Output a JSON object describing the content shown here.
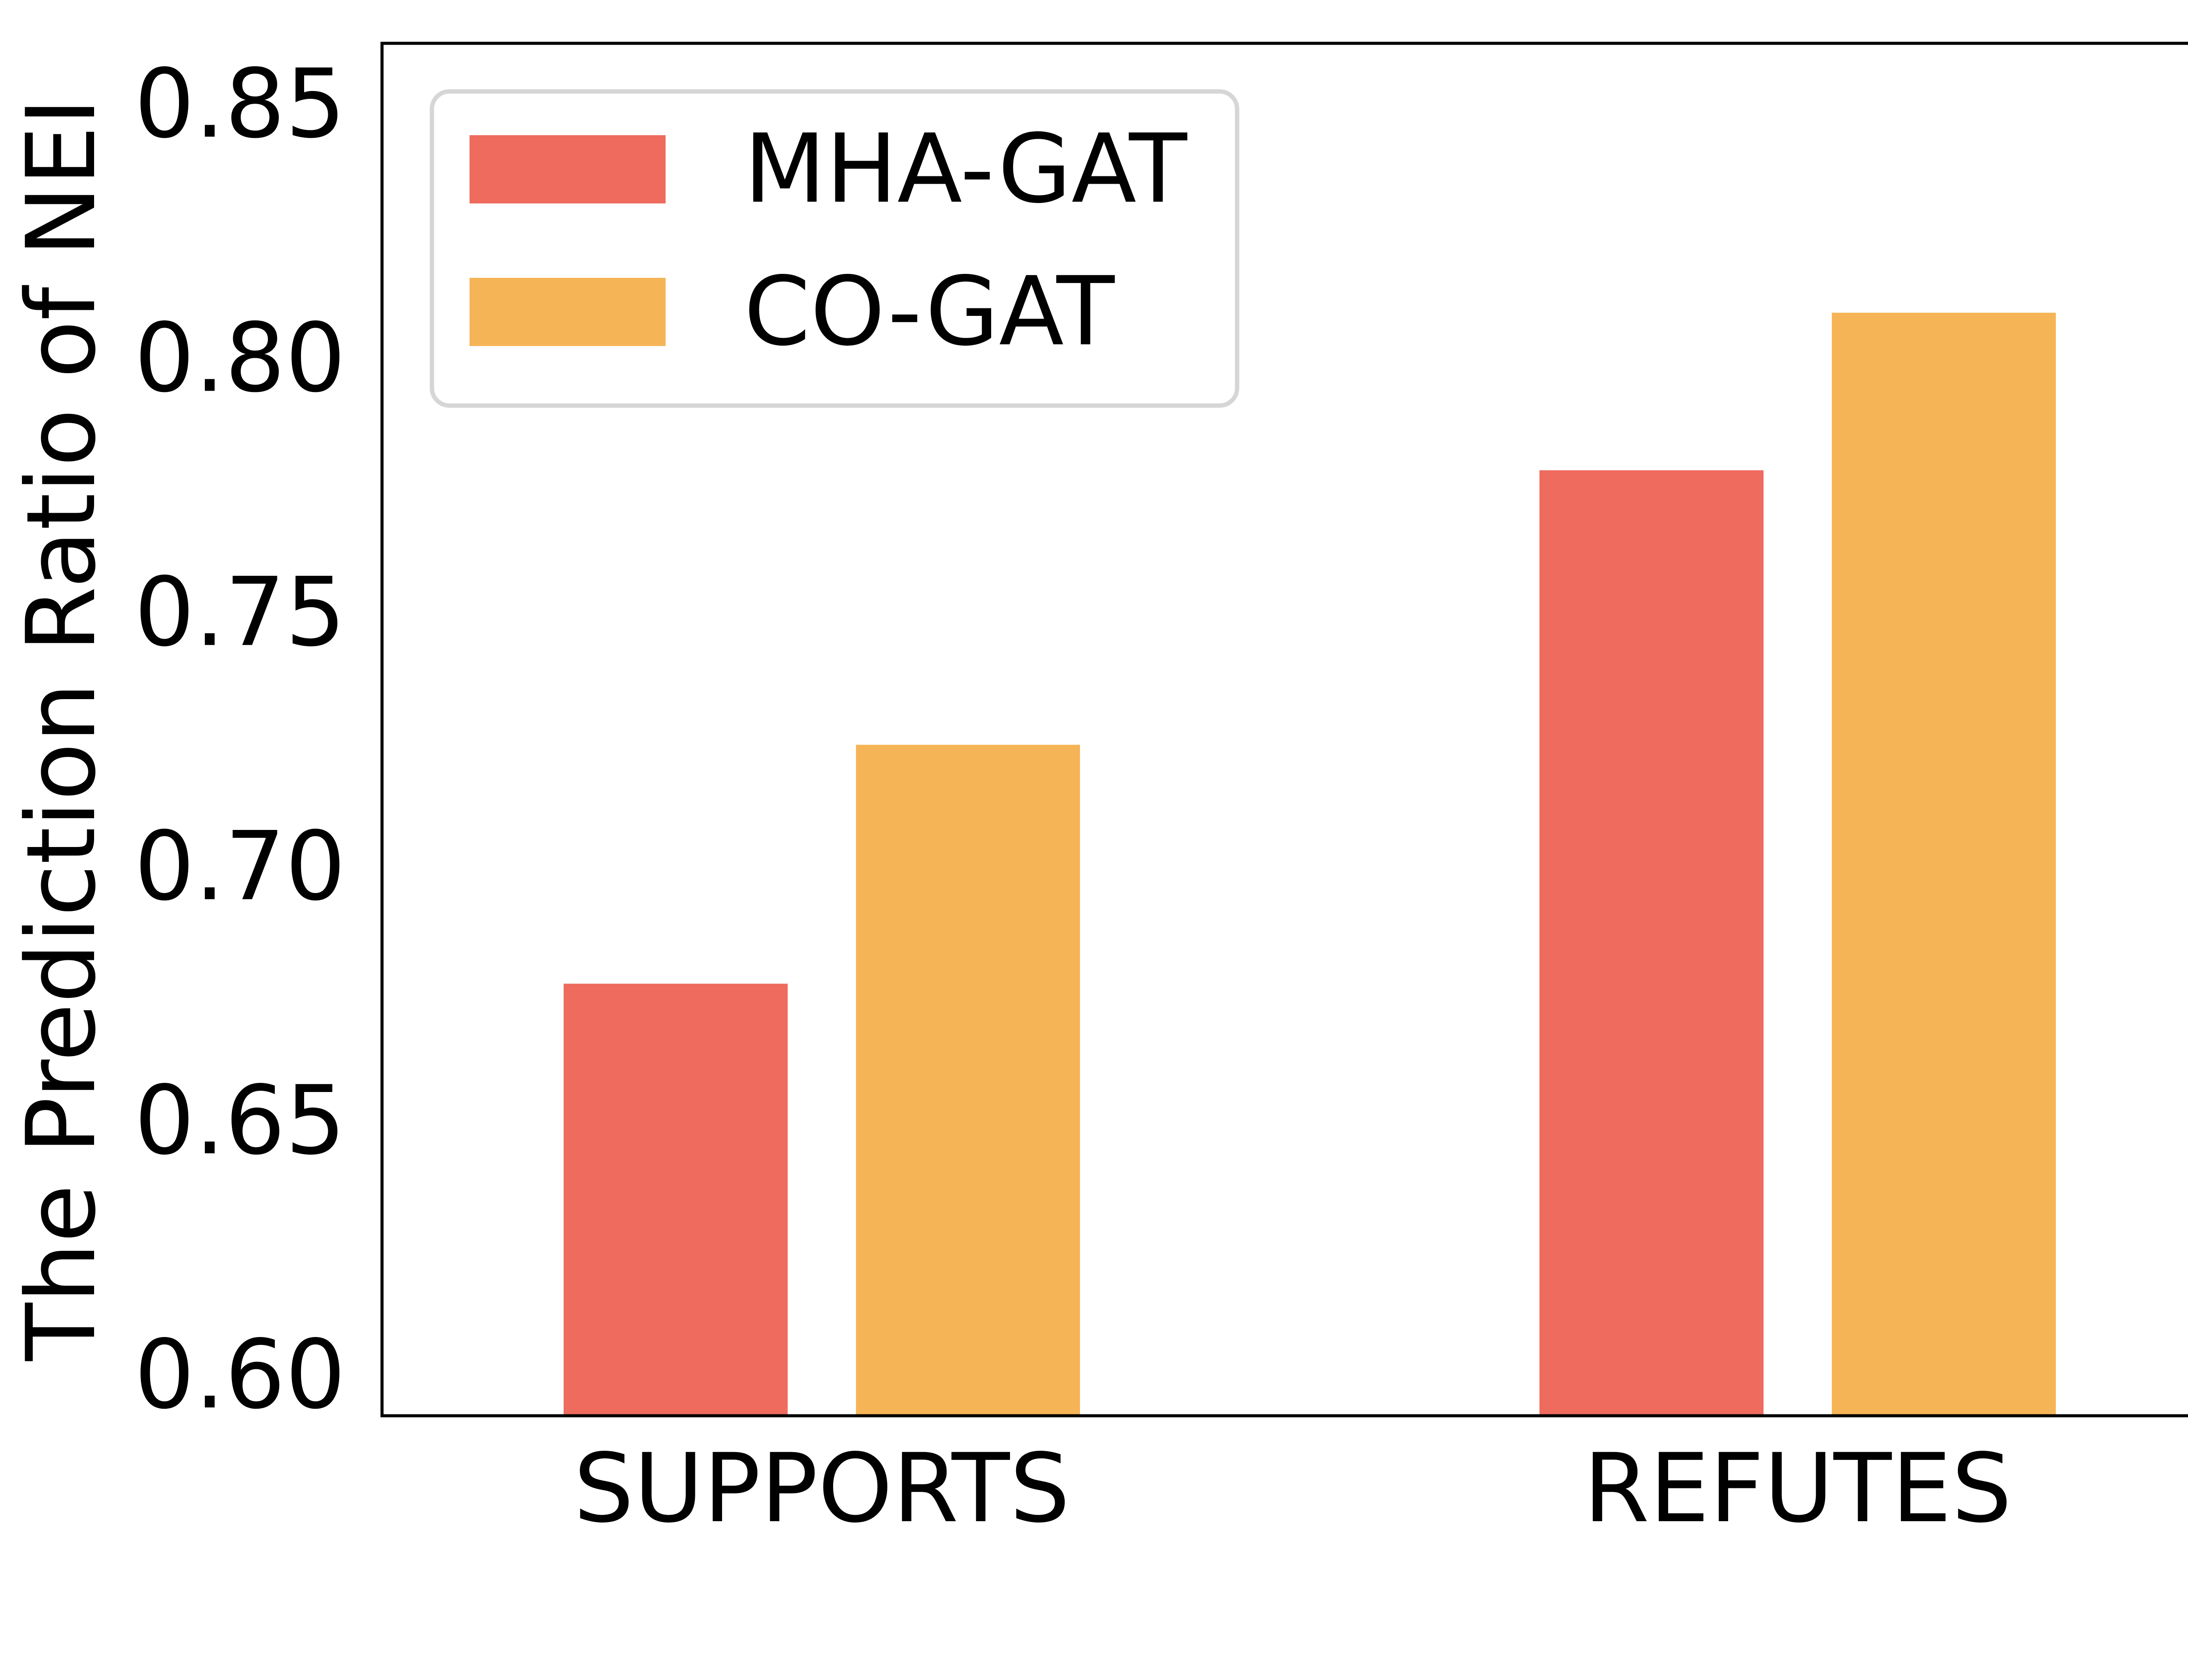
{
  "chart_data": {
    "type": "bar",
    "title": "",
    "xlabel": "",
    "ylabel": "The Prediction Ratio of  NEI",
    "categories": [
      "SUPPORTS",
      "REFUTES"
    ],
    "series": [
      {
        "name": "MHA-GAT",
        "color": "#ee6b5e",
        "values": [
          0.677,
          0.778
        ]
      },
      {
        "name": "CO-GAT",
        "color": "#f5b556",
        "values": [
          0.724,
          0.809
        ]
      }
    ],
    "ylim": [
      0.592,
      0.862
    ],
    "yticks": [
      0.6,
      0.65,
      0.7,
      0.75,
      0.8,
      0.85
    ],
    "ytick_labels": [
      "0.60",
      "0.65",
      "0.70",
      "0.75",
      "0.80",
      "0.85"
    ],
    "legend_position": "top-left",
    "grid": false
  }
}
